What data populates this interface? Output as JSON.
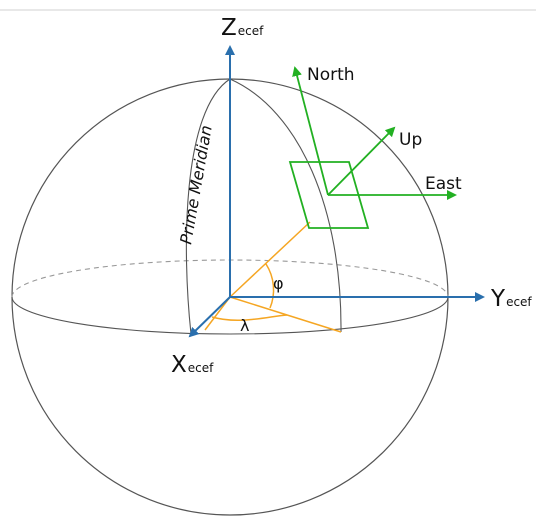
{
  "labels": {
    "z_main": "Z",
    "z_sub": "ecef",
    "y_main": "Y",
    "y_sub": "ecef",
    "x_main": "X",
    "x_sub": "ecef",
    "north": "North",
    "up": "Up",
    "east": "East",
    "prime_meridian": "Prime Meridian",
    "latitude_symbol": "φ",
    "longitude_symbol": "λ"
  },
  "colors": {
    "ecef_axes": "#2a6fad",
    "enu_frame": "#22b022",
    "angle_lines": "#f5a623",
    "sphere_outline": "#555555",
    "equator_hidden": "#999999",
    "top_border": "#d0d0d0"
  }
}
